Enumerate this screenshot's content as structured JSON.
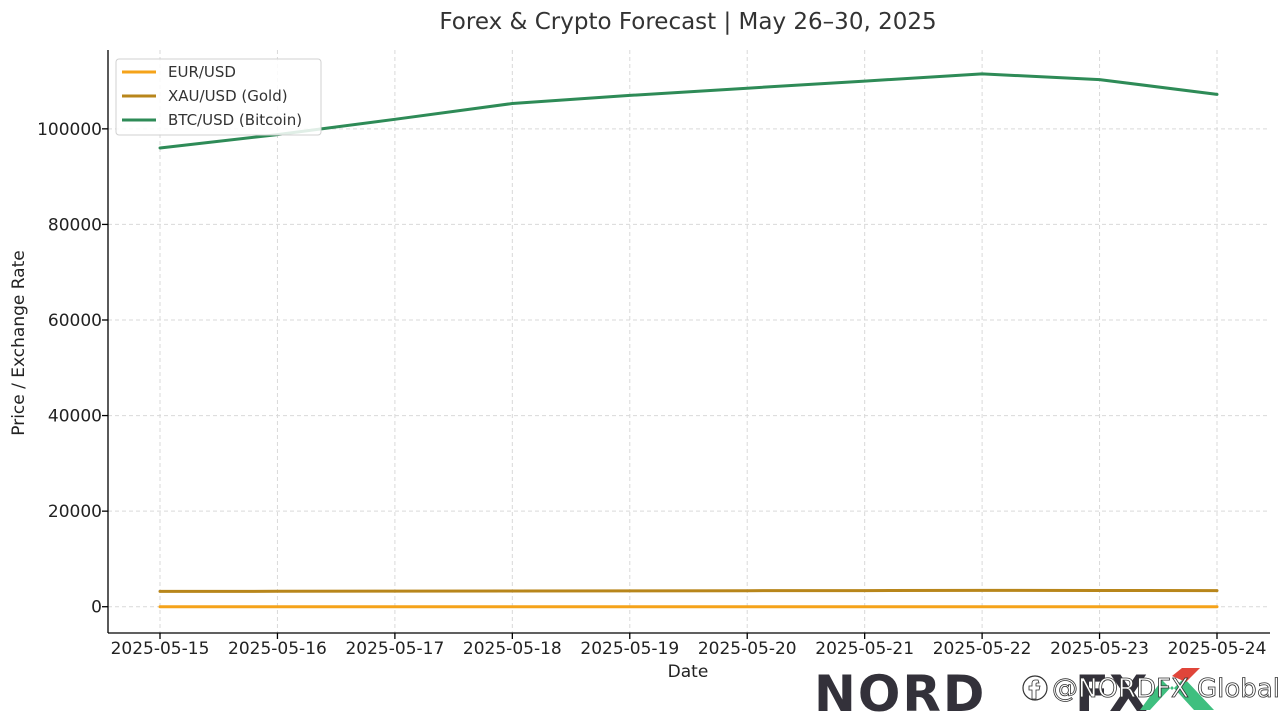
{
  "chart_data": {
    "type": "line",
    "title": "Forex & Crypto Forecast | May 26–30, 2025",
    "xlabel": "Date",
    "ylabel": "Price / Exchange Rate",
    "categories": [
      "2025-05-15",
      "2025-05-16",
      "2025-05-17",
      "2025-05-18",
      "2025-05-19",
      "2025-05-20",
      "2025-05-21",
      "2025-05-22",
      "2025-05-23",
      "2025-05-24"
    ],
    "yticks": [
      0,
      20000,
      40000,
      60000,
      80000,
      100000
    ],
    "ylim": [
      -5500,
      116500
    ],
    "grid": true,
    "legend_position": "top-left",
    "series": [
      {
        "name": "EUR/USD",
        "color": "#f5a31a",
        "values": [
          1.12,
          1.12,
          1.13,
          1.13,
          1.13,
          1.13,
          1.13,
          1.14,
          1.14,
          1.14
        ]
      },
      {
        "name": "XAU/USD (Gold)",
        "color": "#b8861b",
        "values": [
          3200,
          3230,
          3260,
          3290,
          3320,
          3350,
          3380,
          3420,
          3400,
          3380
        ]
      },
      {
        "name": "BTC/USD (Bitcoin)",
        "color": "#2e8b57",
        "values": [
          96000,
          98800,
          102000,
          105300,
          107000,
          108500,
          110000,
          111500,
          110300,
          107200
        ]
      }
    ]
  },
  "brand": {
    "logo_text": "NORD",
    "logo_fx_text": "FX",
    "watermark": "@NORDFX Global",
    "watermark_icon": "facebook-icon"
  }
}
